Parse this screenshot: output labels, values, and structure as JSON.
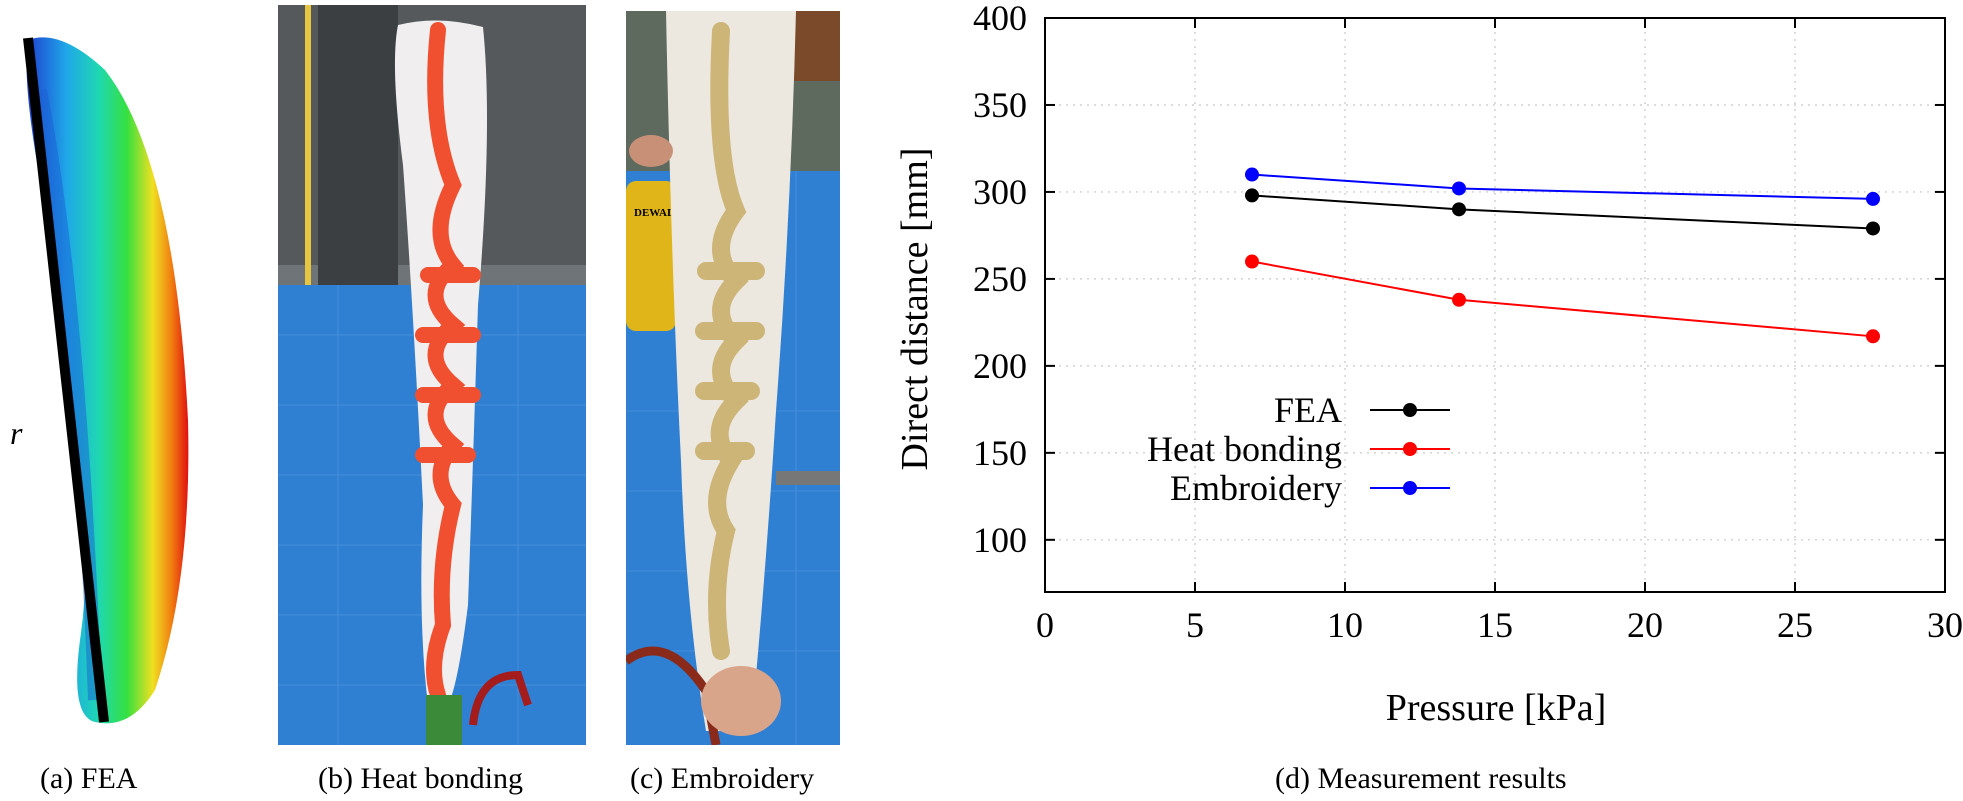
{
  "panels": {
    "a": {
      "caption": "(a)  FEA",
      "radius_label": "r"
    },
    "b": {
      "caption": "(b)  Heat bonding"
    },
    "c": {
      "caption": "(c)  Embroidery"
    },
    "d": {
      "caption": "(d)  Measurement results"
    }
  },
  "photo_c": {
    "brand_text": "DEWALT"
  },
  "colors": {
    "fea": "#000000",
    "heat_bonding": "#ff0000",
    "embroidery": "#0000ff",
    "heat_bonding_pattern": "#f0502f",
    "embroidery_pattern": "#cdb577",
    "workbench_mat": "#2f7fd3"
  },
  "chart_data": {
    "type": "line",
    "title": "",
    "xlabel": "Pressure [kPa]",
    "ylabel": "Direct distance [mm]",
    "xlim": [
      0,
      30
    ],
    "ylim": [
      70,
      400
    ],
    "xticks": [
      0,
      5,
      10,
      15,
      20,
      25,
      30
    ],
    "yticks": [
      100,
      150,
      200,
      250,
      300,
      350,
      400
    ],
    "grid": true,
    "legend_position": "center-left",
    "series": [
      {
        "name": "FEA",
        "color": "#000000",
        "x": [
          6.9,
          13.8,
          27.6
        ],
        "y": [
          298,
          290,
          279
        ]
      },
      {
        "name": "Heat bonding",
        "color": "#ff0000",
        "x": [
          6.9,
          13.8,
          27.6
        ],
        "y": [
          260,
          238,
          217
        ]
      },
      {
        "name": "Embroidery",
        "color": "#0000ff",
        "x": [
          6.9,
          13.8,
          27.6
        ],
        "y": [
          310,
          302,
          296
        ]
      }
    ]
  }
}
